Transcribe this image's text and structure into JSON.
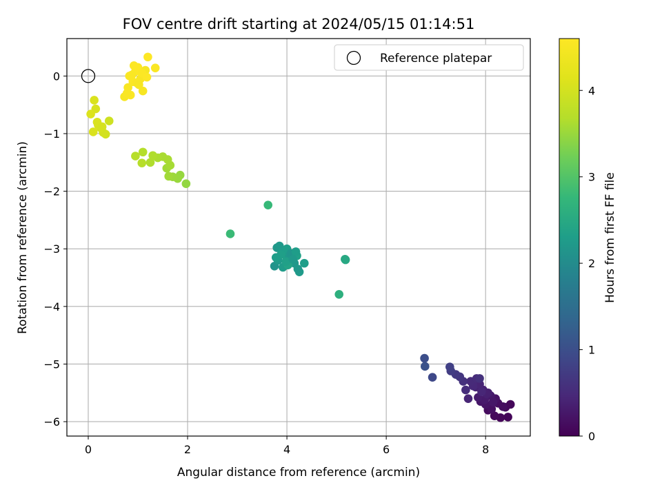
{
  "chart_data": {
    "type": "scatter",
    "title": "FOV centre drift starting at 2024/05/15 01:14:51",
    "xlabel": "Angular distance from reference (arcmin)",
    "ylabel": "Rotation from reference (arcmin)",
    "xlim": [
      -0.43,
      8.9
    ],
    "ylim": [
      -6.25,
      0.65
    ],
    "xticks": [
      0,
      2,
      4,
      6,
      8
    ],
    "yticks": [
      0,
      -1,
      -2,
      -3,
      -4,
      -5,
      -6
    ],
    "grid": true,
    "legend": {
      "position": "top-right",
      "entries": [
        {
          "label": "Reference platepar",
          "marker": "open-circle"
        }
      ]
    },
    "reference": {
      "x": 0,
      "y": 0
    },
    "colorbar": {
      "label": "Hours from first FF file",
      "colormap": "viridis",
      "range": [
        0,
        4.6
      ],
      "ticks": [
        0,
        1,
        2,
        3,
        4
      ]
    },
    "x": [
      8.45,
      8.3,
      8.18,
      8.05,
      8.4,
      8.5,
      8.25,
      8.12,
      8.0,
      7.9,
      8.2,
      8.1,
      7.98,
      7.85,
      8.35,
      8.15,
      8.05,
      7.95,
      7.8,
      7.88,
      8.02,
      7.92,
      7.75,
      7.7,
      7.82,
      7.6,
      7.55,
      7.48,
      7.4,
      7.3,
      7.28,
      7.88,
      7.65,
      6.93,
      6.77,
      6.78,
      5.05,
      5.17,
      5.18,
      3.62,
      2.86,
      3.8,
      3.85,
      3.9,
      3.95,
      4.0,
      4.05,
      4.1,
      4.15,
      4.2,
      4.25,
      4.35,
      3.75,
      3.82,
      3.88,
      3.92,
      4.02,
      4.08,
      4.18,
      4.22,
      3.78,
      3.98,
      4.12,
      1.97,
      1.85,
      1.8,
      1.7,
      1.62,
      1.58,
      1.65,
      1.6,
      1.5,
      1.4,
      1.3,
      1.25,
      1.1,
      1.08,
      0.95,
      0.42,
      0.35,
      0.3,
      0.25,
      0.2,
      0.15,
      0.12,
      0.1,
      0.05,
      0.18,
      0.28,
      0.73,
      0.8,
      0.85,
      0.9,
      0.95,
      1.0,
      1.05,
      1.1,
      1.15,
      1.2,
      1.35,
      0.88,
      0.98,
      1.08,
      1.18,
      0.78,
      0.92,
      1.02,
      0.83
    ],
    "y": [
      -5.92,
      -5.93,
      -5.9,
      -5.8,
      -5.75,
      -5.7,
      -5.68,
      -5.78,
      -5.7,
      -5.65,
      -5.6,
      -5.55,
      -5.62,
      -5.58,
      -5.74,
      -5.66,
      -5.5,
      -5.45,
      -5.4,
      -5.35,
      -5.52,
      -5.48,
      -5.38,
      -5.3,
      -5.25,
      -5.45,
      -5.3,
      -5.22,
      -5.18,
      -5.12,
      -5.05,
      -5.25,
      -5.6,
      -5.23,
      -4.9,
      -5.04,
      -3.79,
      -3.18,
      -3.19,
      -2.24,
      -2.74,
      -2.98,
      -2.95,
      -3.05,
      -3.1,
      -3.0,
      -3.15,
      -3.2,
      -3.25,
      -3.12,
      -3.4,
      -3.25,
      -3.3,
      -3.2,
      -3.1,
      -3.32,
      -3.28,
      -3.08,
      -3.05,
      -3.35,
      -3.15,
      -3.22,
      -3.18,
      -1.87,
      -1.72,
      -1.78,
      -1.75,
      -1.74,
      -1.6,
      -1.55,
      -1.45,
      -1.4,
      -1.42,
      -1.38,
      -1.5,
      -1.32,
      -1.51,
      -1.39,
      -0.78,
      -1.01,
      -0.98,
      -0.9,
      -0.85,
      -0.57,
      -0.42,
      -0.97,
      -0.66,
      -0.8,
      -0.88,
      -0.36,
      -0.2,
      -0.33,
      -0.1,
      0.08,
      0.15,
      -0.05,
      -0.26,
      0.1,
      0.33,
      0.14,
      0.02,
      -0.12,
      0.05,
      -0.02,
      -0.3,
      0.18,
      -0.15,
      0.0
    ],
    "c": [
      0.05,
      0.07,
      0.09,
      0.12,
      0.1,
      0.08,
      0.15,
      0.18,
      0.22,
      0.25,
      0.2,
      0.28,
      0.3,
      0.32,
      0.14,
      0.26,
      0.35,
      0.38,
      0.4,
      0.42,
      0.36,
      0.45,
      0.48,
      0.5,
      0.52,
      0.55,
      0.6,
      0.65,
      0.7,
      0.75,
      0.8,
      0.58,
      0.44,
      0.9,
      1.0,
      1.05,
      2.62,
      2.5,
      2.48,
      2.78,
      2.8,
      2.2,
      2.22,
      2.25,
      2.28,
      2.3,
      2.18,
      2.15,
      2.2,
      2.35,
      2.25,
      2.3,
      2.12,
      2.24,
      2.32,
      2.26,
      2.4,
      2.16,
      2.28,
      2.2,
      2.3,
      2.34,
      2.22,
      3.45,
      3.48,
      3.5,
      3.52,
      3.55,
      3.55,
      3.58,
      3.6,
      3.6,
      3.62,
      3.65,
      3.65,
      3.68,
      3.7,
      3.7,
      3.95,
      3.98,
      4.0,
      4.02,
      4.05,
      4.05,
      4.08,
      4.08,
      4.1,
      4.06,
      4.02,
      4.5,
      4.52,
      4.55,
      4.55,
      4.58,
      4.58,
      4.52,
      4.5,
      4.48,
      4.6,
      4.55,
      4.56,
      4.54,
      4.57,
      4.59,
      4.53,
      4.58,
      4.51,
      4.56
    ]
  }
}
